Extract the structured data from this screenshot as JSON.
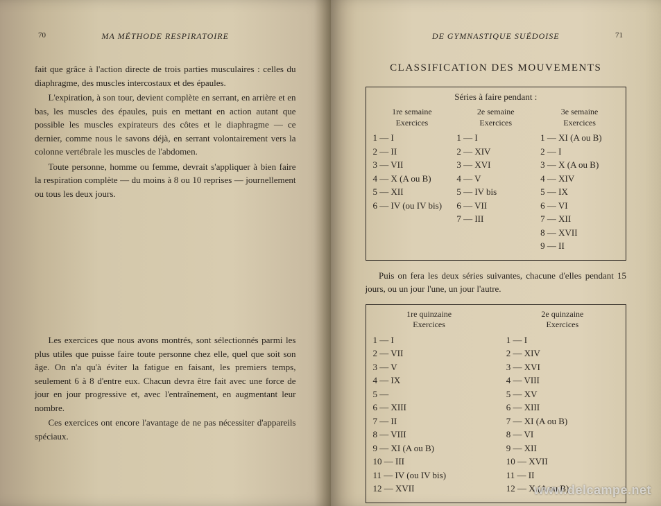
{
  "left": {
    "page_number": "70",
    "header": "MA MÉTHODE RESPIRATOIRE",
    "paragraphs_top": [
      "fait que grâce à l'action directe de trois parties musculaires : celles du diaphragme, des muscles intercostaux et des épaules.",
      "L'expiration, à son tour, devient complète en serrant, en arrière et en bas, les muscles des épaules, puis en mettant en action autant que possible les muscles expirateurs des côtes et le diaphragme — ce dernier, comme nous le savons déjà, en serrant volontairement vers la colonne vertébrale les muscles de l'abdomen.",
      "Toute personne, homme ou femme, devrait s'appliquer à bien faire la respiration complète — du moins à 8 ou 10 reprises — journellement ou tous les deux jours."
    ],
    "paragraphs_bottom": [
      "Les exercices que nous avons montrés, sont sélectionnés parmi les plus utiles que puisse faire toute personne chez elle, quel que soit son âge. On n'a qu'à éviter la fatigue en faisant, les premiers temps, seulement 6 à 8 d'entre eux. Chacun devra être fait avec une force de jour en jour progressive et, avec l'entraînement, en augmentant leur nombre.",
      "Ces exercices ont encore l'avantage de ne pas nécessiter d'appareils spéciaux."
    ]
  },
  "right": {
    "page_number": "71",
    "header": "DE GYMNASTIQUE SUÉDOISE",
    "title": "CLASSIFICATION DES MOUVEMENTS",
    "table1": {
      "caption": "Séries à faire pendant :",
      "columns": [
        {
          "head_line1": "1re semaine",
          "head_line2": "Exercices",
          "rows": [
            "1 — I",
            "2 — II",
            "3 — VII",
            "4 — X   (A ou B)",
            "5 — XII",
            "6 — IV  (ou IV bis)"
          ]
        },
        {
          "head_line1": "2e semaine",
          "head_line2": "Exercices",
          "rows": [
            "1 — I",
            "2 — XIV",
            "3 — XVI",
            "4 — V",
            "5 — IV bis",
            "6 — VII",
            "7 — III"
          ]
        },
        {
          "head_line1": "3e semaine",
          "head_line2": "Exercices",
          "rows": [
            "1 — XI  (A ou B)",
            "2 — I",
            "3 — X   (A ou B)",
            "4 — XIV",
            "5 — IX",
            "6 — VI",
            "7 — XII",
            "8 — XVII",
            "9 — II"
          ]
        }
      ]
    },
    "intertext": "Puis on fera les deux séries suivantes, chacune d'elles pendant 15 jours, ou un jour l'une, un jour l'autre.",
    "table2": {
      "columns": [
        {
          "head_line1": "1re quinzaine",
          "head_line2": "Exercices",
          "rows": [
            "1 — I",
            "2 — VII",
            "3 — V",
            "4 — IX",
            "5 —",
            "6 — XIII",
            "7 — II",
            "8 — VIII",
            "9 — XI   (A ou B)",
            "10 — III",
            "11 — IV   (ou IV bis)",
            "12 — XVII"
          ]
        },
        {
          "head_line1": "2e quinzaine",
          "head_line2": "Exercices",
          "rows": [
            "1 — I",
            "2 — XIV",
            "3 — XVI",
            "4 — VIII",
            "5 — XV",
            "6 — XIII",
            "7 — XI   (A ou B)",
            "8 — VI",
            "9 — XII",
            "10 — XVII",
            "11 — II",
            "12 — X    (A ou B)"
          ]
        }
      ]
    }
  },
  "watermark": "www.delcampe.net"
}
